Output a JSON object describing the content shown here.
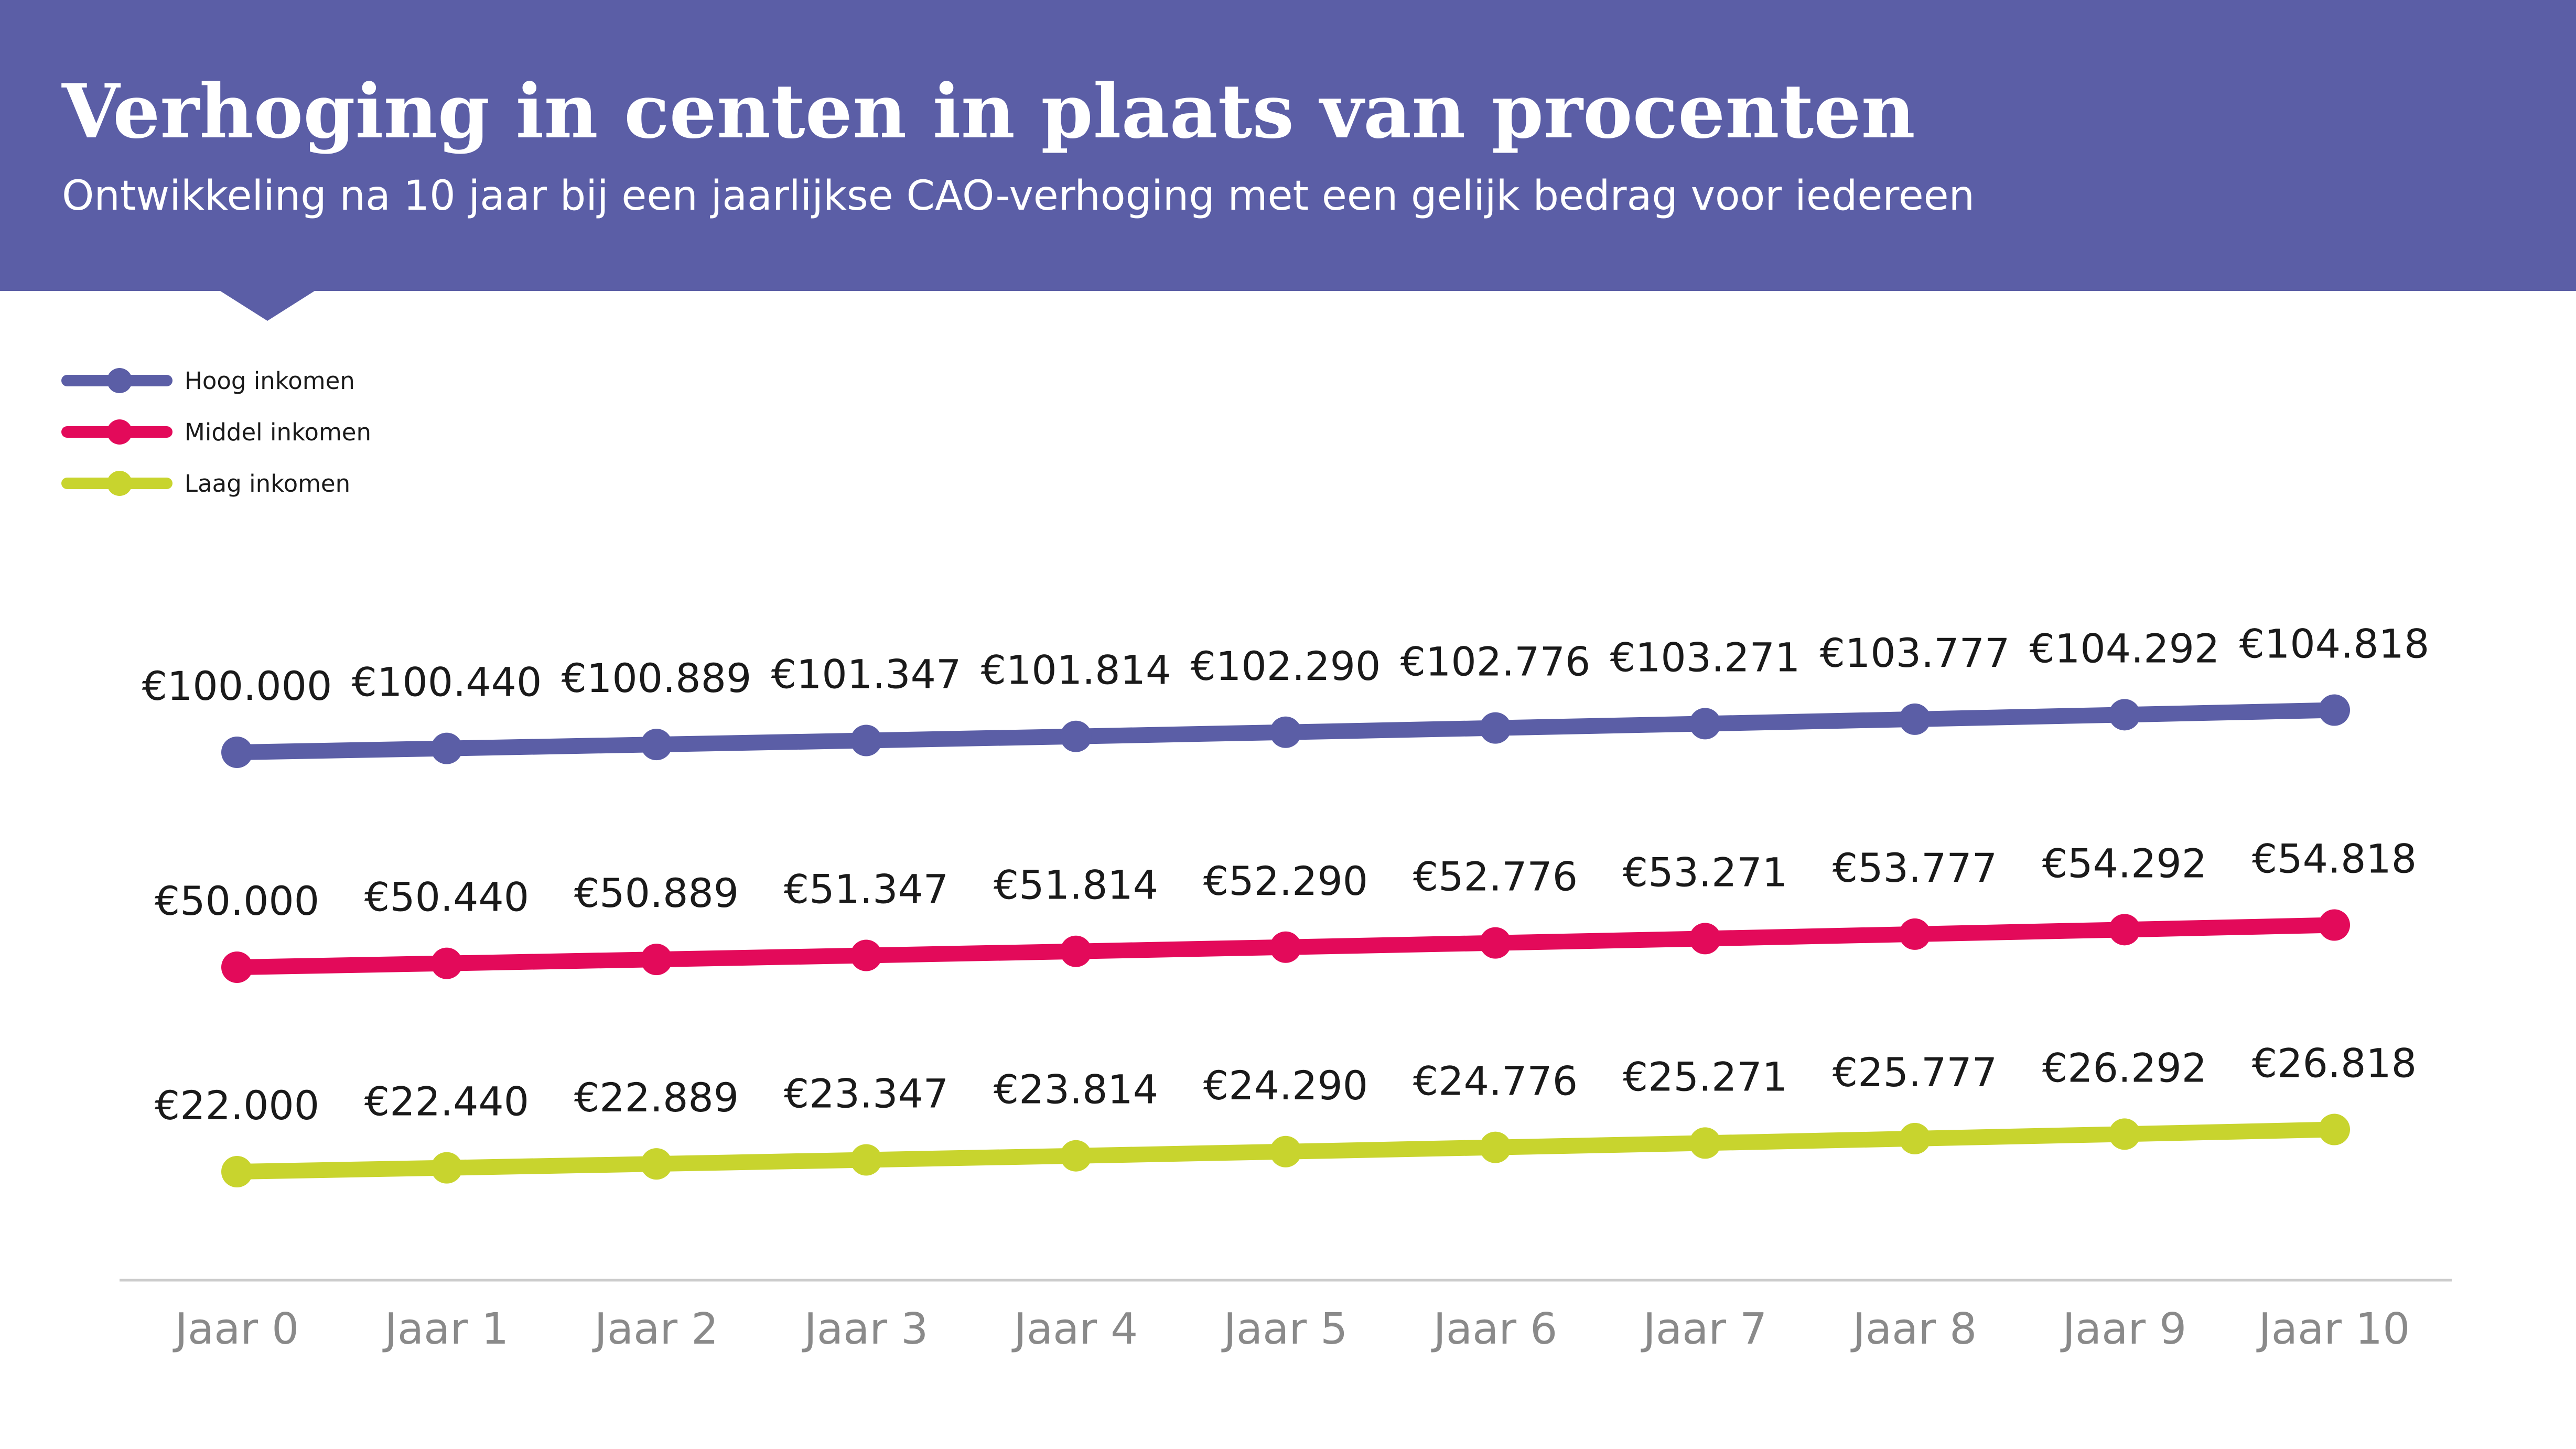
{
  "header": {
    "title": "Verhoging in centen in plaats van procenten",
    "subtitle": "Ontwikkeling na 10 jaar bij een jaarlijkse CAO-verhoging met een gelijk bedrag voor iedereen"
  },
  "colors": {
    "header_bg": "#5b5ea6",
    "hoog": "#5b5ea6",
    "middel": "#e30a5a",
    "laag": "#c8d42e",
    "axis": "#cccccc",
    "tick_text": "#8a8a8a"
  },
  "chart_data": {
    "type": "line",
    "title": "Verhoging in centen in plaats van procenten",
    "subtitle": "Ontwikkeling na 10 jaar bij een jaarlijkse CAO-verhoging met een gelijk bedrag voor iedereen",
    "xlabel": "",
    "ylabel": "",
    "categories": [
      "Jaar 0",
      "Jaar 1",
      "Jaar 2",
      "Jaar 3",
      "Jaar 4",
      "Jaar 5",
      "Jaar 6",
      "Jaar 7",
      "Jaar 8",
      "Jaar 9",
      "Jaar 10"
    ],
    "legend_position": "top-left",
    "grid": false,
    "series": [
      {
        "name": "Hoog inkomen",
        "color": "#5b5ea6",
        "values": [
          100000,
          100440,
          100889,
          101347,
          101814,
          102290,
          102776,
          103271,
          103777,
          104292,
          104818
        ],
        "labels": [
          "€100.000",
          "€100.440",
          "€100.889",
          "€101.347",
          "€101.814",
          "€102.290",
          "€102.776",
          "€103.271",
          "€103.777",
          "€104.292",
          "€104.818"
        ]
      },
      {
        "name": "Middel inkomen",
        "color": "#e30a5a",
        "values": [
          50000,
          50440,
          50889,
          51347,
          51814,
          52290,
          52776,
          53271,
          53777,
          54292,
          54818
        ],
        "labels": [
          "€50.000",
          "€50.440",
          "€50.889",
          "€51.347",
          "€51.814",
          "€52.290",
          "€52.776",
          "€53.271",
          "€53.777",
          "€54.292",
          "€54.818"
        ]
      },
      {
        "name": "Laag inkomen",
        "color": "#c8d42e",
        "values": [
          22000,
          22440,
          22889,
          23347,
          23814,
          24290,
          24776,
          25271,
          25777,
          26292,
          26818
        ],
        "labels": [
          "€22.000",
          "€22.440",
          "€22.889",
          "€23.347",
          "€23.814",
          "€24.290",
          "€24.776",
          "€25.271",
          "€25.777",
          "€26.292",
          "€26.818"
        ]
      }
    ]
  }
}
